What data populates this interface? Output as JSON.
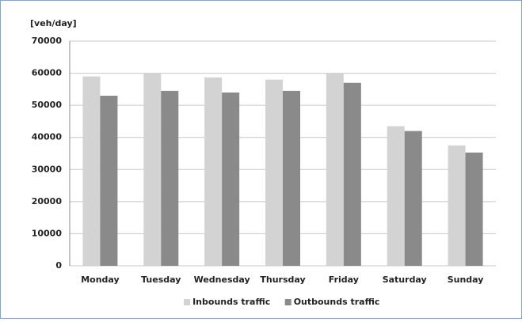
{
  "chart_data": {
    "type": "bar",
    "y_label": "[veh/day]",
    "categories": [
      "Monday",
      "Tuesday",
      "Wednesday",
      "Thursday",
      "Friday",
      "Saturday",
      "Sunday"
    ],
    "series": [
      {
        "name": "Inbounds traffic",
        "color": "#d3d3d3",
        "values": [
          59000,
          60000,
          58700,
          58000,
          60000,
          43500,
          37500
        ]
      },
      {
        "name": "Outbounds traffic",
        "color": "#8a8a8a",
        "values": [
          53000,
          54500,
          54000,
          54500,
          57000,
          42000,
          35300
        ]
      }
    ],
    "ylim": [
      0,
      70000
    ],
    "yticks": [
      0,
      10000,
      20000,
      30000,
      40000,
      50000,
      60000,
      70000
    ],
    "grid": true,
    "legend": "bottom"
  }
}
